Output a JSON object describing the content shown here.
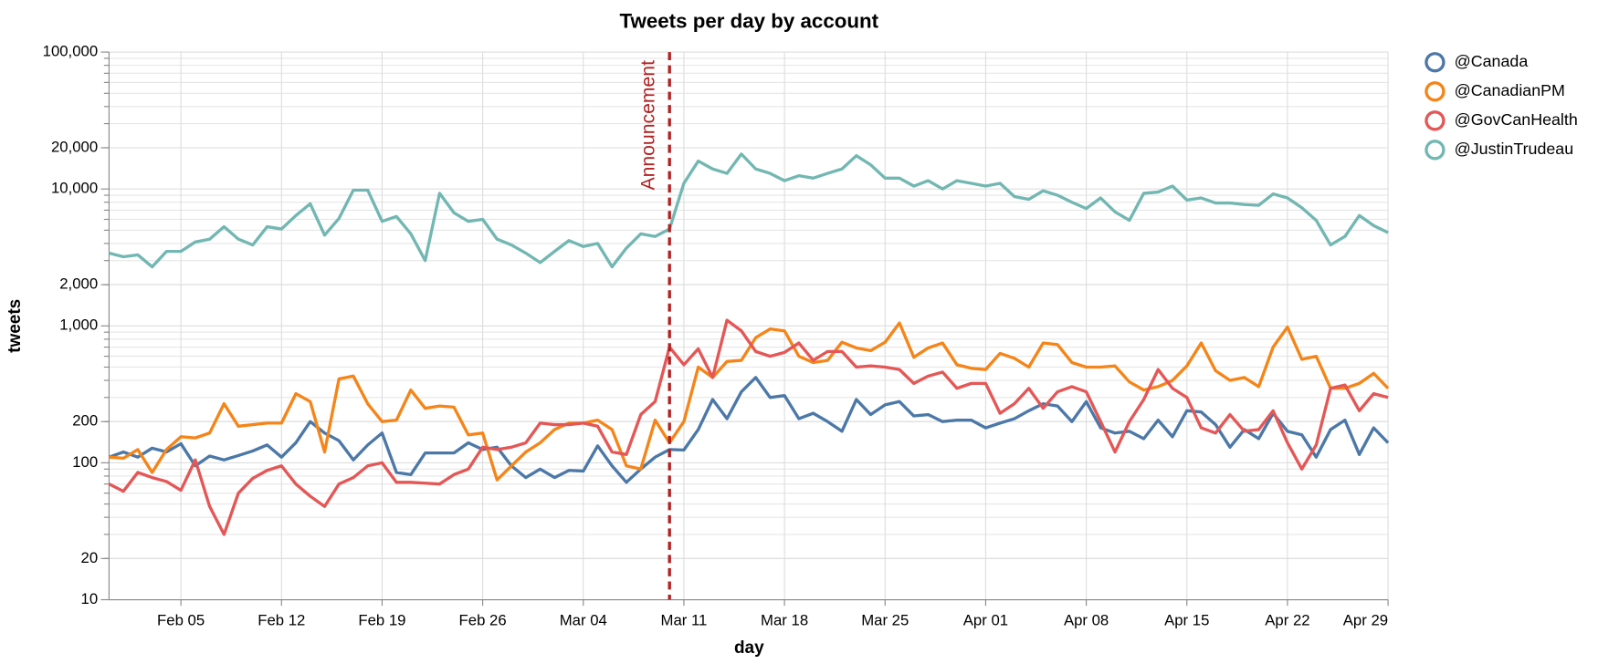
{
  "chart_data": {
    "type": "line",
    "title": "Tweets per day by account",
    "x_label": "day",
    "y_label": "tweets",
    "log_y": true,
    "grid": true,
    "legend": "right",
    "x": [
      "Jan 31",
      "Feb 01",
      "Feb 02",
      "Feb 03",
      "Feb 04",
      "Feb 05",
      "Feb 06",
      "Feb 07",
      "Feb 08",
      "Feb 09",
      "Feb 10",
      "Feb 11",
      "Feb 12",
      "Feb 13",
      "Feb 14",
      "Feb 15",
      "Feb 16",
      "Feb 17",
      "Feb 18",
      "Feb 19",
      "Feb 20",
      "Feb 21",
      "Feb 22",
      "Feb 23",
      "Feb 24",
      "Feb 25",
      "Feb 26",
      "Feb 27",
      "Feb 28",
      "Feb 29",
      "Mar 01",
      "Mar 02",
      "Mar 03",
      "Mar 04",
      "Mar 05",
      "Mar 06",
      "Mar 07",
      "Mar 08",
      "Mar 09",
      "Mar 10",
      "Mar 11",
      "Mar 12",
      "Mar 13",
      "Mar 14",
      "Mar 15",
      "Mar 16",
      "Mar 17",
      "Mar 18",
      "Mar 19",
      "Mar 20",
      "Mar 21",
      "Mar 22",
      "Mar 23",
      "Mar 24",
      "Mar 25",
      "Mar 26",
      "Mar 27",
      "Mar 28",
      "Mar 29",
      "Mar 30",
      "Mar 31",
      "Apr 01",
      "Apr 02",
      "Apr 03",
      "Apr 04",
      "Apr 05",
      "Apr 06",
      "Apr 07",
      "Apr 08",
      "Apr 09",
      "Apr 10",
      "Apr 11",
      "Apr 12",
      "Apr 13",
      "Apr 14",
      "Apr 15",
      "Apr 16",
      "Apr 17",
      "Apr 18",
      "Apr 19",
      "Apr 20",
      "Apr 21",
      "Apr 22",
      "Apr 23",
      "Apr 24",
      "Apr 25",
      "Apr 26",
      "Apr 27",
      "Apr 28",
      "Apr 29"
    ],
    "xticks": [
      "Feb 05",
      "Feb 12",
      "Feb 19",
      "Feb 26",
      "Mar 04",
      "Mar 11",
      "Mar 18",
      "Mar 25",
      "Apr 01",
      "Apr 08",
      "Apr 15",
      "Apr 22",
      "Apr 29"
    ],
    "ylim": [
      10,
      100000
    ],
    "yticks": [
      10,
      20,
      100,
      200,
      {
        "value": 1000,
        "label": "1,000"
      },
      {
        "value": 2000,
        "label": "2,000"
      },
      {
        "value": 10000,
        "label": "10,000"
      },
      {
        "value": 20000,
        "label": "20,000"
      },
      {
        "value": 100000,
        "label": "100,000"
      }
    ],
    "annotations": [
      {
        "x": "Mar 10",
        "label": "Announcement",
        "color": "#b22222"
      }
    ],
    "series": [
      {
        "name": "@Canada",
        "color": "#4c78a8",
        "values": [
          110,
          120,
          110,
          128,
          120,
          138,
          95,
          112,
          105,
          113,
          122,
          135,
          110,
          140,
          200,
          165,
          145,
          105,
          135,
          165,
          85,
          82,
          118,
          118,
          118,
          140,
          125,
          130,
          95,
          78,
          90,
          78,
          88,
          87,
          133,
          95,
          72,
          90,
          110,
          125,
          124,
          175,
          290,
          210,
          330,
          420,
          300,
          310,
          210,
          230,
          200,
          170,
          290,
          225,
          265,
          280,
          220,
          225,
          200,
          205,
          205,
          180,
          195,
          210,
          240,
          270,
          260,
          200,
          280,
          180,
          165,
          170,
          150,
          205,
          155,
          240,
          235,
          190,
          130,
          175,
          150,
          230,
          170,
          160,
          110,
          175,
          205,
          115,
          180,
          140
        ]
      },
      {
        "name": "@CanadianPM",
        "color": "#f58518",
        "values": [
          110,
          108,
          125,
          85,
          125,
          155,
          152,
          165,
          270,
          185,
          190,
          195,
          195,
          320,
          280,
          120,
          410,
          430,
          270,
          200,
          205,
          340,
          250,
          260,
          255,
          160,
          165,
          75,
          95,
          120,
          140,
          175,
          195,
          195,
          205,
          175,
          95,
          90,
          205,
          140,
          200,
          500,
          420,
          550,
          560,
          820,
          950,
          920,
          600,
          540,
          560,
          760,
          690,
          660,
          760,
          1050,
          590,
          690,
          750,
          520,
          490,
          480,
          630,
          580,
          500,
          750,
          730,
          540,
          500,
          500,
          510,
          390,
          340,
          360,
          400,
          510,
          750,
          470,
          400,
          420,
          360,
          700,
          980,
          570,
          600,
          350,
          350,
          380,
          450,
          350
        ]
      },
      {
        "name": "@GovCanHealth",
        "color": "#e45756",
        "values": [
          70,
          62,
          85,
          78,
          73,
          63,
          105,
          48,
          30,
          60,
          77,
          88,
          95,
          70,
          57,
          48,
          70,
          78,
          95,
          100,
          72,
          72,
          71,
          70,
          82,
          90,
          130,
          125,
          130,
          140,
          195,
          190,
          190,
          195,
          185,
          120,
          115,
          225,
          280,
          700,
          520,
          680,
          420,
          1100,
          920,
          650,
          600,
          640,
          750,
          560,
          650,
          650,
          500,
          510,
          500,
          480,
          380,
          430,
          460,
          350,
          380,
          380,
          230,
          270,
          350,
          250,
          330,
          360,
          330,
          200,
          120,
          200,
          290,
          480,
          350,
          300,
          180,
          165,
          225,
          170,
          175,
          240,
          140,
          90,
          135,
          350,
          370,
          240,
          320,
          300
        ]
      },
      {
        "name": "@JustinTrudeau",
        "color": "#72b7b2",
        "values": [
          3400,
          3200,
          3300,
          2700,
          3500,
          3500,
          4100,
          4300,
          5300,
          4300,
          3900,
          5300,
          5100,
          6400,
          7800,
          4600,
          6100,
          9800,
          9800,
          5800,
          6300,
          4700,
          3000,
          9300,
          6700,
          5800,
          6000,
          4300,
          3900,
          3400,
          2900,
          3500,
          4200,
          3800,
          4000,
          2700,
          3700,
          4700,
          4500,
          5100,
          11000,
          16000,
          14000,
          13000,
          18000,
          14000,
          13000,
          11500,
          12500,
          12000,
          13000,
          14000,
          17500,
          15000,
          12000,
          12000,
          10500,
          11500,
          10000,
          11500,
          11000,
          10500,
          11000,
          8800,
          8400,
          9700,
          9000,
          8000,
          7200,
          8600,
          6800,
          5900,
          9300,
          9500,
          10500,
          8300,
          8600,
          7900,
          7900,
          7700,
          7600,
          9200,
          8600,
          7300,
          5900,
          3900,
          4500,
          6400,
          5400,
          4800
        ]
      }
    ]
  }
}
